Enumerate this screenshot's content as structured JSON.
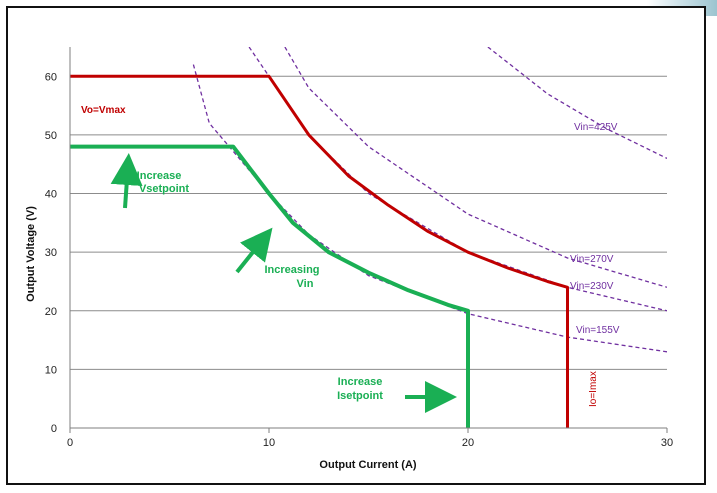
{
  "chart_data": {
    "type": "line",
    "xlabel": "Output Current (A)",
    "ylabel": "Output Voltage (V)",
    "xlim": [
      0,
      30
    ],
    "ylim": [
      0,
      65
    ],
    "x_ticks": [
      "0",
      "10",
      "20",
      "30"
    ],
    "y_ticks": [
      "0",
      "10",
      "20",
      "30",
      "40",
      "50",
      "60"
    ],
    "grid": "horizontal",
    "series": [
      {
        "color": "#c00000",
        "style": "solid",
        "x": [
          0,
          10,
          12,
          14,
          16,
          18,
          20,
          22,
          24,
          25,
          25
        ],
        "y": [
          60,
          60,
          50,
          43,
          38,
          33.5,
          30,
          27.3,
          25,
          24,
          0
        ]
      },
      {
        "color": "#1aaf54",
        "style": "solid",
        "x": [
          0,
          8.2,
          10,
          11.2,
          13,
          15,
          17,
          19,
          20,
          20
        ],
        "y": [
          48,
          48,
          40,
          35,
          30,
          26.5,
          23.5,
          21,
          20,
          0
        ]
      },
      {
        "name": "Vin=155V",
        "color": "#7030a0",
        "style": "dashed",
        "x": [
          6.2,
          7,
          8,
          10,
          12,
          15,
          20,
          25,
          30
        ],
        "y": [
          62,
          52,
          48,
          40,
          33,
          26,
          19.5,
          15.5,
          13
        ]
      },
      {
        "name": "Vin=230V",
        "color": "#7030a0",
        "style": "dashed",
        "x": [
          9,
          10,
          12,
          15,
          20,
          25,
          30
        ],
        "y": [
          65,
          60,
          50,
          40,
          30,
          24,
          20
        ]
      },
      {
        "name": "Vin=270V",
        "color": "#7030a0",
        "style": "dashed",
        "x": [
          10.8,
          12,
          15,
          20,
          25,
          30
        ],
        "y": [
          65,
          58,
          48,
          36.5,
          29,
          24
        ]
      },
      {
        "name": "Vin=425V",
        "color": "#7030a0",
        "style": "dashed",
        "x": [
          21,
          24,
          27,
          30
        ],
        "y": [
          65,
          57,
          51,
          46
        ]
      }
    ],
    "annotations": [
      {
        "id": "vmax",
        "text": "Vo=Vmax",
        "color": "#c00000"
      },
      {
        "id": "imax",
        "text": "Io=Imax",
        "color": "#c00000"
      },
      {
        "id": "vset1",
        "text": "Increase",
        "color": "#1aaf54"
      },
      {
        "id": "vset2",
        "text": "Vsetpoint",
        "color": "#1aaf54"
      },
      {
        "id": "vin1",
        "text": "Increasing",
        "color": "#1aaf54"
      },
      {
        "id": "vin2",
        "text": "Vin",
        "color": "#1aaf54"
      },
      {
        "id": "iset1",
        "text": "Increase",
        "color": "#1aaf54"
      },
      {
        "id": "iset2",
        "text": "Isetpoint",
        "color": "#1aaf54"
      },
      {
        "id": "v425",
        "text": "Vin=425V",
        "color": "#7030a0"
      },
      {
        "id": "v270",
        "text": "Vin=270V",
        "color": "#7030a0"
      },
      {
        "id": "v230",
        "text": "Vin=230V",
        "color": "#7030a0"
      },
      {
        "id": "v155",
        "text": "Vin=155V",
        "color": "#7030a0"
      }
    ]
  }
}
